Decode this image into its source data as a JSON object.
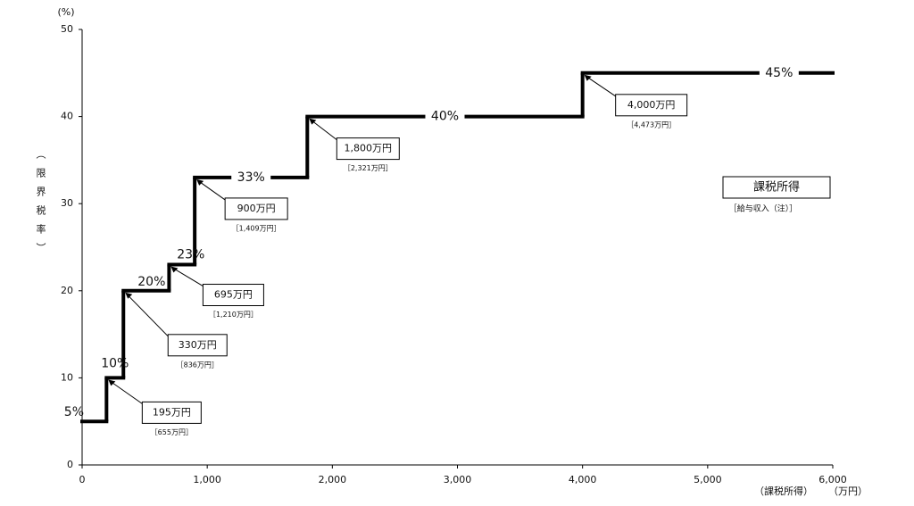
{
  "chart_data": {
    "type": "step",
    "y_unit": "(%)",
    "y_label": "（限界税率）",
    "x_label": "（課税所得）",
    "x_unit": "（万円）",
    "x": [
      0,
      195,
      330,
      695,
      900,
      1800,
      4000
    ],
    "values": [
      5,
      10,
      20,
      23,
      33,
      40,
      45
    ],
    "value_labels": [
      "5%",
      "10%",
      "20%",
      "23%",
      "33%",
      "40%",
      "45%"
    ],
    "color": "#000000",
    "annotations": [
      {
        "label": "195万円",
        "income": "［655万円］"
      },
      {
        "label": "330万円",
        "income": "［836万円］"
      },
      {
        "label": "695万円",
        "income": "［1,210万円］"
      },
      {
        "label": "900万円",
        "income": "［1,409万円］"
      },
      {
        "label": "1,800万円",
        "income": "［2,321万円］"
      },
      {
        "label": "4,000万円",
        "income": "［4,473万円］"
      }
    ],
    "key": {
      "label": "課税所得",
      "sub": "［給与収入（注）］"
    },
    "xlim": [
      0,
      6000
    ],
    "xticks": [
      0,
      {
        "value": 1000,
        "label": "1,000"
      },
      {
        "value": 2000,
        "label": "2,000"
      },
      {
        "value": 3000,
        "label": "3,000"
      },
      {
        "value": 4000,
        "label": "4,000"
      },
      {
        "value": 5000,
        "label": "5,000"
      },
      {
        "value": 6000,
        "label": "6,000"
      }
    ],
    "ylim": [
      0,
      50
    ],
    "yticks": [
      0,
      10,
      20,
      30,
      40,
      50
    ]
  }
}
